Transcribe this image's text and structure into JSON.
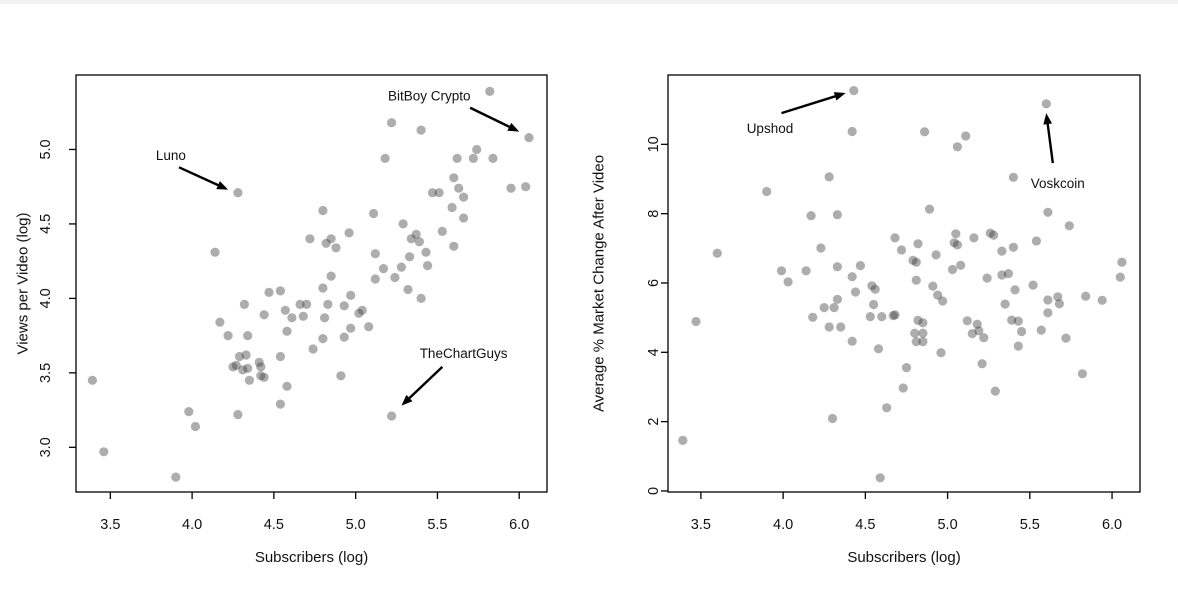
{
  "page": {
    "background": "#ffffff"
  },
  "chart_data": [
    {
      "type": "scatter",
      "title": "",
      "xlabel": "Subscribers (log)",
      "ylabel": "Views per Video (log)",
      "xlim": [
        3.29,
        6.17
      ],
      "ylim": [
        2.7,
        5.5
      ],
      "xticks": [
        3.5,
        4.0,
        4.5,
        5.0,
        5.5,
        6.0
      ],
      "xtick_labels": [
        "3.5",
        "4.0",
        "4.5",
        "5.0",
        "5.5",
        "6.0"
      ],
      "yticks": [
        3.0,
        3.5,
        4.0,
        4.5,
        5.0
      ],
      "ytick_labels": [
        "3.0",
        "3.5",
        "4.0",
        "4.5",
        "5.0"
      ],
      "grid": false,
      "legend": "none",
      "point_color": "#3c3c3c",
      "point_opacity": 0.42,
      "points": [
        [
          3.39,
          3.45
        ],
        [
          3.46,
          2.97
        ],
        [
          3.9,
          2.8
        ],
        [
          3.98,
          3.24
        ],
        [
          4.02,
          3.14
        ],
        [
          4.28,
          3.22
        ],
        [
          4.17,
          3.84
        ],
        [
          4.22,
          3.75
        ],
        [
          4.32,
          3.96
        ],
        [
          4.34,
          3.75
        ],
        [
          4.44,
          3.89
        ],
        [
          4.47,
          4.04
        ],
        [
          4.54,
          4.05
        ],
        [
          4.57,
          3.92
        ],
        [
          4.61,
          3.87
        ],
        [
          4.66,
          3.96
        ],
        [
          4.7,
          3.96
        ],
        [
          4.58,
          3.78
        ],
        [
          4.54,
          3.61
        ],
        [
          4.58,
          3.41
        ],
        [
          4.54,
          3.29
        ],
        [
          4.27,
          3.55
        ],
        [
          4.29,
          3.61
        ],
        [
          4.33,
          3.62
        ],
        [
          4.25,
          3.54
        ],
        [
          4.31,
          3.52
        ],
        [
          4.34,
          3.53
        ],
        [
          4.35,
          3.45
        ],
        [
          4.41,
          3.57
        ],
        [
          4.42,
          3.54
        ],
        [
          4.42,
          3.48
        ],
        [
          4.44,
          3.47
        ],
        [
          4.28,
          4.71
        ],
        [
          4.14,
          4.31
        ],
        [
          5.82,
          5.39
        ],
        [
          6.06,
          5.08
        ],
        [
          5.22,
          5.18
        ],
        [
          5.4,
          5.13
        ],
        [
          5.18,
          4.94
        ],
        [
          5.62,
          4.94
        ],
        [
          5.74,
          5.0
        ],
        [
          5.72,
          4.94
        ],
        [
          5.84,
          4.94
        ],
        [
          5.6,
          4.81
        ],
        [
          5.63,
          4.74
        ],
        [
          5.95,
          4.74
        ],
        [
          6.04,
          4.75
        ],
        [
          5.66,
          4.68
        ],
        [
          5.47,
          4.71
        ],
        [
          5.51,
          4.71
        ],
        [
          5.59,
          4.61
        ],
        [
          4.8,
          4.59
        ],
        [
          5.66,
          4.54
        ],
        [
          5.11,
          4.57
        ],
        [
          5.29,
          4.5
        ],
        [
          4.96,
          4.44
        ],
        [
          5.53,
          4.45
        ],
        [
          4.72,
          4.4
        ],
        [
          4.85,
          4.4
        ],
        [
          4.82,
          4.37
        ],
        [
          4.88,
          4.34
        ],
        [
          5.34,
          4.4
        ],
        [
          5.37,
          4.43
        ],
        [
          5.39,
          4.38
        ],
        [
          5.43,
          4.31
        ],
        [
          5.6,
          4.35
        ],
        [
          5.12,
          4.3
        ],
        [
          5.33,
          4.28
        ],
        [
          5.44,
          4.22
        ],
        [
          4.85,
          4.15
        ],
        [
          5.12,
          4.13
        ],
        [
          5.17,
          4.2
        ],
        [
          5.28,
          4.21
        ],
        [
          5.24,
          4.14
        ],
        [
          4.8,
          4.07
        ],
        [
          5.32,
          4.06
        ],
        [
          4.97,
          4.02
        ],
        [
          5.4,
          4.0
        ],
        [
          4.83,
          3.96
        ],
        [
          4.93,
          3.95
        ],
        [
          5.04,
          3.92
        ],
        [
          5.02,
          3.9
        ],
        [
          4.68,
          3.88
        ],
        [
          4.81,
          3.87
        ],
        [
          4.97,
          3.8
        ],
        [
          5.08,
          3.81
        ],
        [
          4.93,
          3.74
        ],
        [
          4.8,
          3.73
        ],
        [
          4.74,
          3.66
        ],
        [
          4.91,
          3.48
        ],
        [
          5.22,
          3.21
        ]
      ],
      "annotations": [
        {
          "label": "Luno",
          "text_at": [
            3.87,
            4.96
          ],
          "arrow_from": [
            3.92,
            4.88
          ],
          "arrow_to": [
            4.22,
            4.73
          ]
        },
        {
          "label": "BitBoy Crypto",
          "text_at": [
            5.45,
            5.36
          ],
          "arrow_from": [
            5.7,
            5.28
          ],
          "arrow_to": [
            6.0,
            5.12
          ]
        },
        {
          "label": "TheChartGuys",
          "text_at": [
            5.66,
            3.63
          ],
          "arrow_from": [
            5.53,
            3.54
          ],
          "arrow_to": [
            5.28,
            3.28
          ]
        }
      ]
    },
    {
      "type": "scatter",
      "title": "",
      "xlabel": "Subscribers (log)",
      "ylabel": "Average % Market Change After Video",
      "xlim": [
        3.3,
        6.17
      ],
      "ylim": [
        -0.03,
        12.0
      ],
      "xticks": [
        3.5,
        4.0,
        4.5,
        5.0,
        5.5,
        6.0
      ],
      "xtick_labels": [
        "3.5",
        "4.0",
        "4.5",
        "5.0",
        "5.5",
        "6.0"
      ],
      "yticks": [
        0,
        2,
        4,
        6,
        8,
        10
      ],
      "ytick_labels": [
        "0",
        "2",
        "4",
        "6",
        "8",
        "10"
      ],
      "grid": false,
      "legend": "none",
      "point_color": "#3c3c3c",
      "point_opacity": 0.42,
      "points": [
        [
          4.43,
          11.55
        ],
        [
          5.6,
          11.17
        ],
        [
          4.42,
          10.37
        ],
        [
          4.86,
          10.36
        ],
        [
          5.11,
          10.24
        ],
        [
          5.06,
          9.93
        ],
        [
          4.28,
          9.06
        ],
        [
          5.4,
          9.05
        ],
        [
          3.9,
          8.64
        ],
        [
          4.89,
          8.13
        ],
        [
          5.61,
          8.04
        ],
        [
          4.33,
          7.97
        ],
        [
          4.17,
          7.94
        ],
        [
          5.74,
          7.65
        ],
        [
          5.05,
          7.42
        ],
        [
          5.26,
          7.44
        ],
        [
          5.28,
          7.38
        ],
        [
          5.16,
          7.3
        ],
        [
          4.68,
          7.3
        ],
        [
          5.54,
          7.21
        ],
        [
          5.04,
          7.16
        ],
        [
          5.06,
          7.1
        ],
        [
          4.82,
          7.13
        ],
        [
          4.23,
          7.01
        ],
        [
          4.72,
          6.95
        ],
        [
          5.4,
          7.03
        ],
        [
          5.33,
          6.92
        ],
        [
          3.6,
          6.86
        ],
        [
          4.93,
          6.81
        ],
        [
          4.79,
          6.65
        ],
        [
          4.81,
          6.6
        ],
        [
          6.06,
          6.6
        ],
        [
          4.47,
          6.5
        ],
        [
          4.33,
          6.47
        ],
        [
          5.08,
          6.51
        ],
        [
          5.03,
          6.39
        ],
        [
          3.99,
          6.35
        ],
        [
          4.14,
          6.35
        ],
        [
          5.37,
          6.27
        ],
        [
          5.33,
          6.23
        ],
        [
          4.42,
          6.18
        ],
        [
          6.05,
          6.17
        ],
        [
          5.24,
          6.14
        ],
        [
          4.81,
          6.08
        ],
        [
          4.03,
          6.03
        ],
        [
          5.52,
          5.94
        ],
        [
          4.54,
          5.92
        ],
        [
          4.91,
          5.91
        ],
        [
          4.56,
          5.82
        ],
        [
          5.41,
          5.8
        ],
        [
          4.44,
          5.74
        ],
        [
          4.94,
          5.65
        ],
        [
          5.84,
          5.62
        ],
        [
          5.67,
          5.6
        ],
        [
          4.33,
          5.53
        ],
        [
          5.61,
          5.51
        ],
        [
          5.94,
          5.5
        ],
        [
          4.97,
          5.48
        ],
        [
          5.68,
          5.4
        ],
        [
          5.35,
          5.39
        ],
        [
          4.55,
          5.38
        ],
        [
          4.25,
          5.29
        ],
        [
          4.31,
          5.29
        ],
        [
          5.61,
          5.14
        ],
        [
          4.67,
          5.06
        ],
        [
          4.68,
          5.08
        ],
        [
          4.53,
          5.03
        ],
        [
          4.6,
          5.03
        ],
        [
          4.18,
          5.01
        ],
        [
          3.47,
          4.89
        ],
        [
          4.82,
          4.92
        ],
        [
          4.85,
          4.85
        ],
        [
          5.12,
          4.91
        ],
        [
          5.39,
          4.93
        ],
        [
          5.43,
          4.9
        ],
        [
          5.18,
          4.81
        ],
        [
          4.28,
          4.73
        ],
        [
          4.35,
          4.73
        ],
        [
          5.57,
          4.64
        ],
        [
          5.19,
          4.62
        ],
        [
          5.45,
          4.6
        ],
        [
          4.8,
          4.55
        ],
        [
          4.85,
          4.55
        ],
        [
          5.15,
          4.54
        ],
        [
          5.22,
          4.42
        ],
        [
          5.72,
          4.41
        ],
        [
          4.42,
          4.32
        ],
        [
          4.81,
          4.31
        ],
        [
          4.85,
          4.31
        ],
        [
          5.43,
          4.18
        ],
        [
          4.58,
          4.1
        ],
        [
          4.96,
          3.99
        ],
        [
          5.21,
          3.67
        ],
        [
          4.75,
          3.56
        ],
        [
          5.82,
          3.38
        ],
        [
          4.73,
          2.97
        ],
        [
          5.29,
          2.88
        ],
        [
          4.63,
          2.4
        ],
        [
          4.3,
          2.09
        ],
        [
          3.39,
          1.46
        ],
        [
          4.59,
          0.38
        ]
      ],
      "annotations": [
        {
          "label": "Upshod",
          "text_at": [
            3.92,
            10.47
          ],
          "arrow_from": [
            3.99,
            10.9
          ],
          "arrow_to": [
            4.38,
            11.48
          ]
        },
        {
          "label": "Voskcoin",
          "text_at": [
            5.67,
            8.88
          ],
          "arrow_from": [
            5.64,
            9.46
          ],
          "arrow_to": [
            5.6,
            10.9
          ]
        }
      ]
    }
  ]
}
